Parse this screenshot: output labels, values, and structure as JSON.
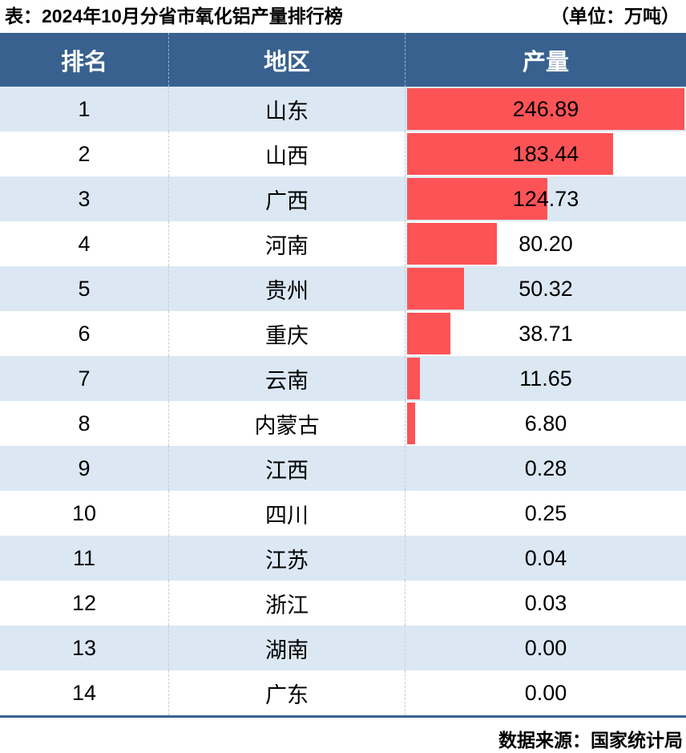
{
  "title": {
    "text": "表：2024年10月分省市氧化铝产量排行榜",
    "unit": "（单位：万吨）"
  },
  "table": {
    "columns": [
      "排名",
      "地区",
      "产量"
    ],
    "rows": [
      {
        "rank": "1",
        "region": "山东",
        "value": "246.89"
      },
      {
        "rank": "2",
        "region": "山西",
        "value": "183.44"
      },
      {
        "rank": "3",
        "region": "广西",
        "value": "124.73"
      },
      {
        "rank": "4",
        "region": "河南",
        "value": "80.20"
      },
      {
        "rank": "5",
        "region": "贵州",
        "value": "50.32"
      },
      {
        "rank": "6",
        "region": "重庆",
        "value": "38.71"
      },
      {
        "rank": "7",
        "region": "云南",
        "value": "11.65"
      },
      {
        "rank": "8",
        "region": "内蒙古",
        "value": "6.80"
      },
      {
        "rank": "9",
        "region": "江西",
        "value": "0.28"
      },
      {
        "rank": "10",
        "region": "四川",
        "value": "0.25"
      },
      {
        "rank": "11",
        "region": "江苏",
        "value": "0.04"
      },
      {
        "rank": "12",
        "region": "浙江",
        "value": "0.03"
      },
      {
        "rank": "13",
        "region": "湖南",
        "value": "0.00"
      },
      {
        "rank": "14",
        "region": "广东",
        "value": "0.00"
      }
    ]
  },
  "footer": {
    "source": "数据来源：国家统计局"
  },
  "colors": {
    "header_bg": "#38618F",
    "bar": "#FC5356",
    "row_alt": "#DBE8F4",
    "divider": "#CCCCCC"
  },
  "chart_data": {
    "type": "bar",
    "orientation": "horizontal",
    "title": "表：2024年10月分省市氧化铝产量排行榜",
    "unit_label": "（单位：万吨）",
    "categories": [
      "山东",
      "山西",
      "广西",
      "河南",
      "贵州",
      "重庆",
      "云南",
      "内蒙古",
      "江西",
      "四川",
      "江苏",
      "浙江",
      "湖南",
      "广东"
    ],
    "values": [
      246.89,
      183.44,
      124.73,
      80.2,
      50.32,
      38.71,
      11.65,
      6.8,
      0.28,
      0.25,
      0.04,
      0.03,
      0.0,
      0.0
    ],
    "ranks": [
      1,
      2,
      3,
      4,
      5,
      6,
      7,
      8,
      9,
      10,
      11,
      12,
      13,
      14
    ],
    "xlim": [
      0,
      246.89
    ],
    "bar_color": "#FC5356",
    "legend": "none",
    "grid": false,
    "source": "数据来源：国家统计局"
  }
}
